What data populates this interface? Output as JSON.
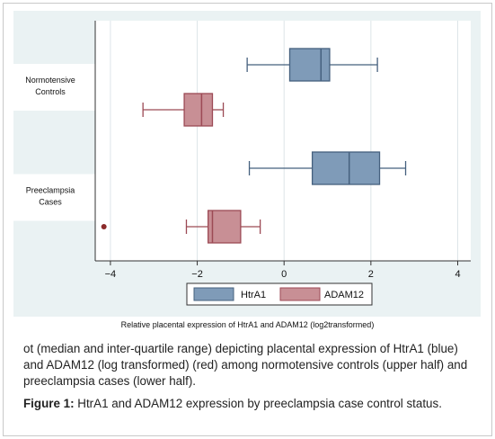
{
  "chart_data": {
    "type": "boxplot",
    "orientation": "horizontal",
    "groups": [
      "Normotensive Controls",
      "Preeclampsia Cases"
    ],
    "group_label_lines": [
      [
        "Normotensive",
        "Controls"
      ],
      [
        "Preeclampsia",
        "Cases"
      ]
    ],
    "series": [
      {
        "name": "HtrA1",
        "color": "#7f9bb8",
        "stroke": "#45607e"
      },
      {
        "name": "ADAM12",
        "color": "#c88f95",
        "stroke": "#9c4a55"
      }
    ],
    "boxes": [
      {
        "group": "Normotensive Controls",
        "series": "HtrA1",
        "whisker_low": -0.85,
        "q1": 0.13,
        "median": 0.85,
        "q3": 1.05,
        "whisker_high": 2.15,
        "outliers": []
      },
      {
        "group": "Normotensive Controls",
        "series": "ADAM12",
        "whisker_low": -3.25,
        "q1": -2.3,
        "median": -1.9,
        "q3": -1.65,
        "whisker_high": -1.4,
        "outliers": []
      },
      {
        "group": "Preeclampsia Cases",
        "series": "HtrA1",
        "whisker_low": -0.8,
        "q1": 0.65,
        "median": 1.5,
        "q3": 2.2,
        "whisker_high": 2.8,
        "outliers": []
      },
      {
        "group": "Preeclampsia Cases",
        "series": "ADAM12",
        "whisker_low": -2.25,
        "q1": -1.75,
        "median": -1.65,
        "q3": -1.0,
        "whisker_high": -0.55,
        "outliers": [
          -4.15
        ]
      }
    ],
    "xlim": [
      -4.35,
      4.3
    ],
    "xticks": [
      -4,
      -2,
      0,
      2,
      4
    ],
    "xlabel": "Relative placental expression of HtrA1 and ADAM12 (log2transformed)",
    "grid": true,
    "legend_position": "bottom"
  },
  "caption": {
    "body": "ot (median and inter-quartile range) depicting placental expression of HtrA1 (blue) and ADAM12 (log transformed) (red) among normotensive controls (upper half) and preeclampsia cases (lower half).",
    "figure_label": "Figure 1:",
    "figure_text": "HtrA1 and ADAM12 expression by preeclampsia case control status."
  }
}
